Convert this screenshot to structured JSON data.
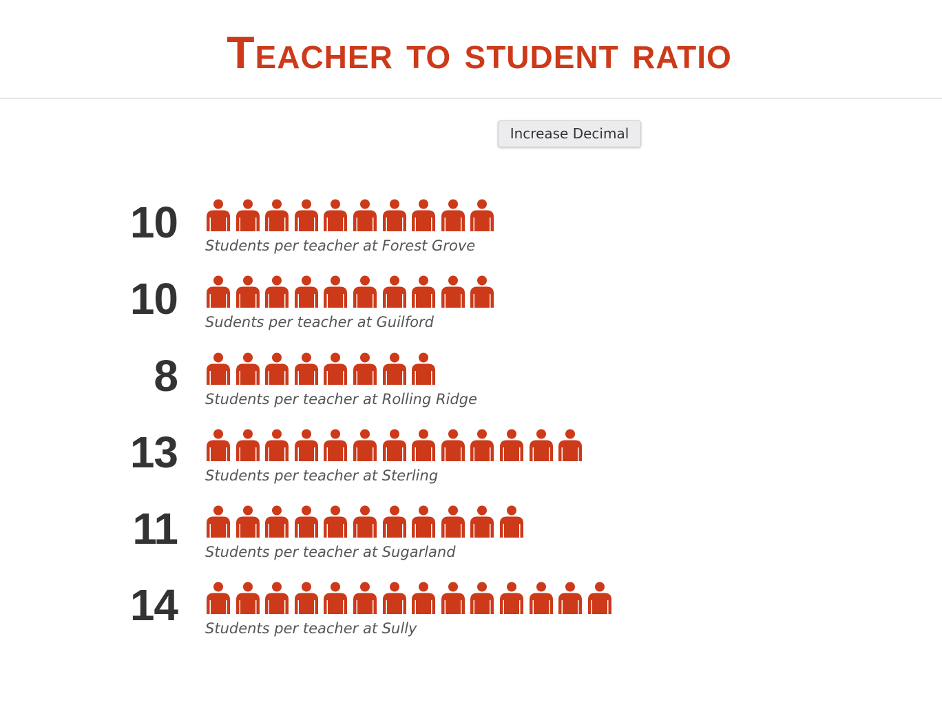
{
  "title": "Teacher to student ratio",
  "toolbar": {
    "increase_decimal_label": "Increase Decimal"
  },
  "colors": {
    "accent": "#cc3a1a",
    "value_text": "#333333",
    "caption_text": "#555555",
    "divider": "#e4e4e4"
  },
  "icon": "person-icon",
  "chart_data": {
    "type": "pictograph",
    "title": "Teacher to student ratio",
    "unit": "one icon = one student",
    "categories": [
      "Forest Grove",
      "Guilford",
      "Rolling Ridge",
      "Sterling",
      "Sugarland",
      "Sully"
    ],
    "values": [
      10,
      10,
      8,
      13,
      11,
      14
    ],
    "rows": [
      {
        "value": "10",
        "count": 10,
        "caption": "Students per teacher at Forest Grove"
      },
      {
        "value": "10",
        "count": 10,
        "caption": "Sudents per teacher at Guilford"
      },
      {
        "value": "8",
        "count": 8,
        "caption": "Students per teacher at Rolling Ridge"
      },
      {
        "value": "13",
        "count": 13,
        "caption": "Students per teacher at Sterling"
      },
      {
        "value": "11",
        "count": 11,
        "caption": "Students per teacher at Sugarland"
      },
      {
        "value": "14",
        "count": 14,
        "caption": "Students per teacher at Sully"
      }
    ]
  }
}
